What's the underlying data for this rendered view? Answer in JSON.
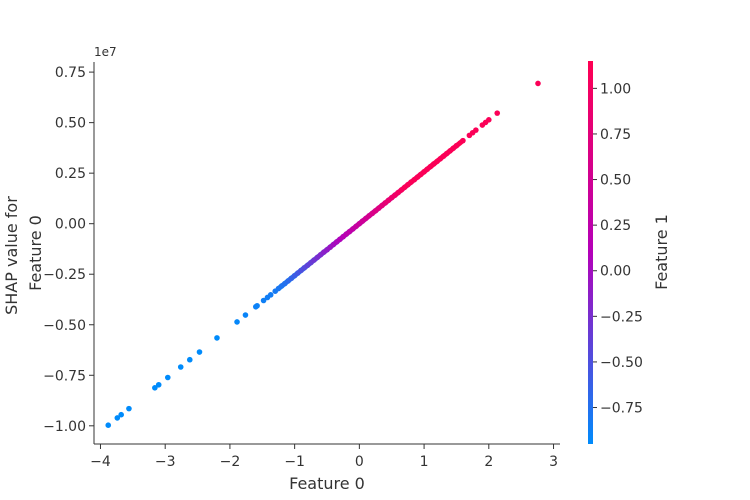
{
  "chart_data": {
    "type": "scatter",
    "xlabel": "Feature 0",
    "ylabel": "SHAP value for\nFeature 0",
    "colorbar_label": "Feature 1",
    "y_offset_label": "1e7",
    "y_scale": 10000000,
    "xlim": [
      -4.1,
      3.1
    ],
    "ylim": [
      -1.09,
      0.8
    ],
    "x_ticks": [
      -4,
      -3,
      -2,
      -1,
      0,
      1,
      2,
      3
    ],
    "y_ticks": [
      -1.0,
      -0.75,
      -0.5,
      -0.25,
      0.0,
      0.25,
      0.5,
      0.75
    ],
    "y_tick_labels": [
      "−1.00",
      "−0.75",
      "−0.50",
      "−0.25",
      "0.00",
      "0.25",
      "0.50",
      "0.75"
    ],
    "x_tick_labels": [
      "−4",
      "−3",
      "−2",
      "−1",
      "0",
      "1",
      "2",
      "3"
    ],
    "colorbar_ticks": [
      1.0,
      0.75,
      0.5,
      0.25,
      0.0,
      -0.25,
      -0.5,
      -0.75
    ],
    "colorbar_tick_labels": [
      "1.00",
      "0.75",
      "0.50",
      "0.25",
      "0.00",
      "−0.25",
      "−0.50",
      "−0.75"
    ],
    "colorbar_range": [
      -0.95,
      1.15
    ],
    "colormap": [
      "#008bfb",
      "#ff0052"
    ],
    "trend": {
      "slope": 2570000,
      "intercept": 0
    },
    "x": [
      -3.88,
      -3.74,
      -3.68,
      -3.56,
      -3.16,
      -3.1,
      -2.96,
      -2.76,
      -2.62,
      -2.47,
      -2.2,
      -1.89,
      -1.76,
      -1.6,
      -1.58,
      -1.48,
      -1.42,
      -1.37,
      -1.3,
      -1.25,
      -1.2,
      -1.15,
      -1.1,
      -1.05,
      -1.0,
      -0.95,
      -0.9,
      -0.85,
      -0.8,
      -0.75,
      -0.7,
      -0.65,
      -0.6,
      -0.55,
      -0.5,
      -0.45,
      -0.4,
      -0.35,
      -0.3,
      -0.25,
      -0.2,
      -0.15,
      -0.1,
      -0.05,
      0.0,
      0.05,
      0.1,
      0.15,
      0.2,
      0.25,
      0.3,
      0.35,
      0.4,
      0.45,
      0.5,
      0.55,
      0.6,
      0.65,
      0.7,
      0.75,
      0.8,
      0.85,
      0.9,
      0.95,
      1.0,
      1.05,
      1.1,
      1.15,
      1.2,
      1.25,
      1.3,
      1.35,
      1.4,
      1.45,
      1.5,
      1.6,
      1.7,
      1.75,
      1.8,
      1.9,
      1.95,
      2.0,
      2.13,
      2.76
    ],
    "y": [
      -9970000,
      -9610000,
      -9450000,
      -9150000,
      -8120000,
      -7970000,
      -7610000,
      -7090000,
      -6730000,
      -6350000,
      -5650000,
      -4860000,
      -4520000,
      -4110000,
      -4060000,
      -3800000,
      -3650000,
      -3520000,
      -3340000,
      -3210000,
      -3080000,
      -2960000,
      -2830000,
      -2700000,
      -2570000,
      -2440000,
      -2310000,
      -2180000,
      -2060000,
      -1930000,
      -1800000,
      -1670000,
      -1540000,
      -1410000,
      -1290000,
      -1160000,
      -1030000,
      -900000,
      -770000,
      -640000,
      -510000,
      -390000,
      -260000,
      -130000,
      0,
      130000,
      260000,
      390000,
      510000,
      640000,
      770000,
      900000,
      1030000,
      1160000,
      1290000,
      1410000,
      1540000,
      1670000,
      1800000,
      1930000,
      2060000,
      2180000,
      2310000,
      2440000,
      2570000,
      2700000,
      2830000,
      2960000,
      3080000,
      3210000,
      3340000,
      3470000,
      3600000,
      3730000,
      3860000,
      4110000,
      4370000,
      4500000,
      4630000,
      4880000,
      5010000,
      5140000,
      5470000,
      6940000
    ],
    "color_value": [
      -0.95,
      -0.95,
      -0.95,
      -0.95,
      -0.95,
      -0.95,
      -0.95,
      -0.95,
      -0.95,
      -0.95,
      -0.95,
      -0.92,
      -0.9,
      -0.88,
      -0.88,
      -0.86,
      -0.85,
      -0.84,
      -0.82,
      -0.8,
      -0.78,
      -0.75,
      -0.7,
      -0.65,
      -0.6,
      -0.55,
      -0.5,
      -0.45,
      -0.4,
      -0.35,
      -0.3,
      -0.25,
      -0.2,
      -0.15,
      -0.1,
      -0.05,
      0.0,
      0.05,
      0.1,
      0.15,
      0.2,
      0.25,
      0.3,
      0.35,
      0.4,
      0.45,
      0.5,
      0.55,
      0.6,
      0.65,
      0.7,
      0.75,
      0.8,
      0.85,
      0.9,
      0.95,
      1.0,
      1.05,
      1.1,
      1.1,
      1.1,
      1.1,
      1.1,
      1.1,
      1.1,
      1.1,
      1.1,
      1.1,
      1.1,
      1.1,
      1.1,
      1.1,
      1.1,
      1.1,
      1.1,
      1.1,
      1.1,
      1.1,
      1.1,
      1.1,
      1.1,
      1.1,
      1.1,
      1.1
    ]
  }
}
